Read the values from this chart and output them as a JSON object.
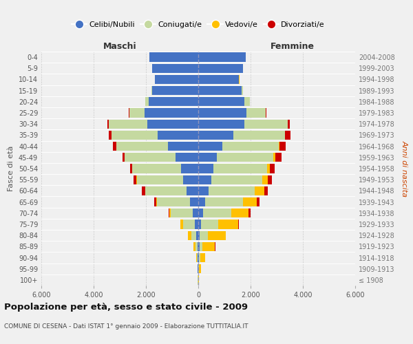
{
  "age_groups": [
    "100+",
    "95-99",
    "90-94",
    "85-89",
    "80-84",
    "75-79",
    "70-74",
    "65-69",
    "60-64",
    "55-59",
    "50-54",
    "45-49",
    "40-44",
    "35-39",
    "30-34",
    "25-29",
    "20-24",
    "15-19",
    "10-14",
    "5-9",
    "0-4"
  ],
  "birth_years": [
    "≤ 1908",
    "1909-1913",
    "1914-1918",
    "1919-1923",
    "1924-1928",
    "1929-1933",
    "1934-1938",
    "1939-1943",
    "1944-1948",
    "1949-1953",
    "1954-1958",
    "1959-1963",
    "1964-1968",
    "1969-1973",
    "1974-1978",
    "1979-1983",
    "1984-1988",
    "1989-1993",
    "1994-1998",
    "1999-2003",
    "2004-2008"
  ],
  "colors": {
    "celibi": "#4472C4",
    "coniugati": "#c5d9a0",
    "vedovi": "#ffc000",
    "divorziati": "#cc0000"
  },
  "males": {
    "celibi": [
      10,
      15,
      25,
      35,
      70,
      120,
      200,
      320,
      460,
      590,
      670,
      860,
      1160,
      1560,
      1960,
      2060,
      1900,
      1760,
      1660,
      1760,
      1860
    ],
    "coniugati": [
      4,
      8,
      22,
      65,
      185,
      470,
      860,
      1260,
      1560,
      1760,
      1860,
      1960,
      1960,
      1760,
      1460,
      570,
      130,
      22,
      7,
      3,
      2
    ],
    "vedovi": [
      3,
      7,
      22,
      72,
      135,
      90,
      42,
      22,
      16,
      11,
      7,
      5,
      3,
      2,
      1,
      1,
      1,
      1,
      1,
      1,
      1
    ],
    "divorziati": [
      1,
      2,
      3,
      5,
      7,
      7,
      32,
      72,
      110,
      120,
      72,
      72,
      140,
      110,
      52,
      16,
      3,
      1,
      1,
      1,
      1
    ]
  },
  "females": {
    "celibi": [
      7,
      12,
      35,
      45,
      60,
      105,
      195,
      255,
      395,
      490,
      570,
      715,
      915,
      1355,
      1755,
      1855,
      1755,
      1655,
      1555,
      1705,
      1805
    ],
    "coniugati": [
      2,
      12,
      35,
      125,
      320,
      665,
      1060,
      1455,
      1755,
      1955,
      2055,
      2155,
      2155,
      1955,
      1655,
      715,
      220,
      45,
      10,
      2,
      2
    ],
    "vedovi": [
      22,
      72,
      185,
      470,
      665,
      765,
      665,
      520,
      370,
      220,
      115,
      72,
      42,
      16,
      7,
      3,
      1,
      1,
      1,
      1,
      1
    ],
    "divorziati": [
      1,
      2,
      3,
      7,
      16,
      25,
      72,
      110,
      140,
      140,
      190,
      240,
      240,
      190,
      90,
      25,
      5,
      1,
      1,
      1,
      1
    ]
  },
  "title": "Popolazione per età, sesso e stato civile - 2009",
  "subtitle": "COMUNE DI CESENA - Dati ISTAT 1° gennaio 2009 - Elaborazione TUTTITALIA.IT",
  "xlabel_left": "Maschi",
  "xlabel_right": "Femmine",
  "ylabel_left": "Fasce di età",
  "ylabel_right": "Anni di nascita",
  "xlim": 6000,
  "background_color": "#f0f0f0",
  "legend_labels": [
    "Celibi/Nubili",
    "Coniugati/e",
    "Vedovi/e",
    "Divorziati/e"
  ]
}
